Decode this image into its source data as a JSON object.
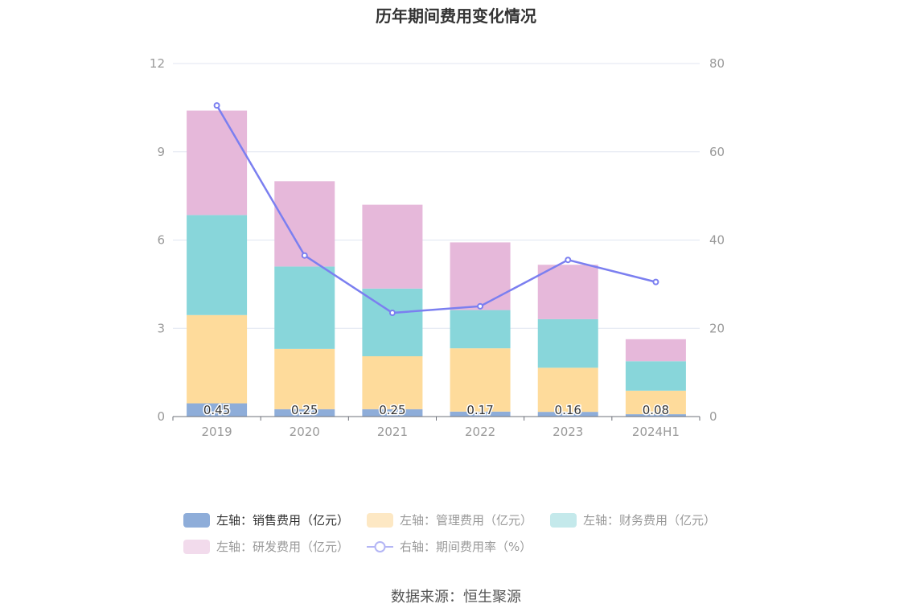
{
  "title": "历年期间费用变化情况",
  "source": "数据来源：恒生聚源",
  "chart_data": {
    "type": "bar",
    "stacked": true,
    "title": "历年期间费用变化情况",
    "categories": [
      "2019",
      "2020",
      "2021",
      "2022",
      "2023",
      "2024H1"
    ],
    "y_left": {
      "ticks": [
        "0",
        "3",
        "6",
        "9",
        "12"
      ],
      "ylim": [
        0,
        12
      ]
    },
    "y_right": {
      "ticks": [
        "0",
        "20",
        "40",
        "60",
        "80"
      ],
      "ylim": [
        0,
        80
      ]
    },
    "grid": true,
    "series": [
      {
        "name": "左轴：销售费用（亿元）",
        "axis": "left",
        "type": "bar",
        "color": "#8eadd9",
        "values": [
          0.45,
          0.25,
          0.25,
          0.17,
          0.16,
          0.08
        ],
        "labels": [
          "0.45",
          "0.25",
          "0.25",
          "0.17",
          "0.16",
          "0.08"
        ]
      },
      {
        "name": "左轴：管理费用（亿元）",
        "axis": "left",
        "type": "bar",
        "color": "#fedb9b",
        "values": [
          3.0,
          2.05,
          1.8,
          2.15,
          1.5,
          0.8
        ]
      },
      {
        "name": "左轴：财务费用（亿元）",
        "axis": "left",
        "type": "bar",
        "color": "#88d6da",
        "values": [
          3.4,
          2.8,
          2.3,
          1.3,
          1.65,
          1.0
        ]
      },
      {
        "name": "左轴：研发费用（亿元）",
        "axis": "left",
        "type": "bar",
        "color": "#e6b8da",
        "values": [
          3.55,
          2.9,
          2.85,
          2.3,
          1.85,
          0.75
        ]
      },
      {
        "name": "右轴：期间费用率（%）",
        "axis": "right",
        "type": "line",
        "color": "#7b7ff0",
        "values": [
          70.5,
          36.5,
          23.5,
          25.0,
          35.5,
          30.5
        ]
      }
    ],
    "legend": {
      "placement": "bottom",
      "active_series": "左轴：销售费用（亿元）"
    }
  }
}
